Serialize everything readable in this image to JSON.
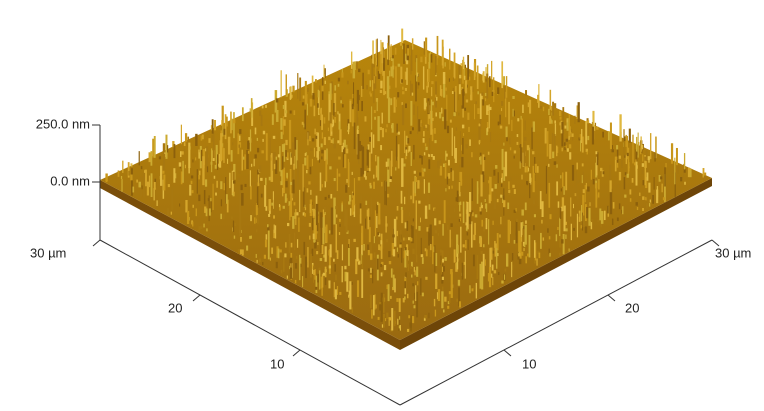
{
  "z_axis": {
    "ticks": [
      "250.0 nm",
      "0.0 nm"
    ]
  },
  "left_axis": {
    "ticks": [
      "30 µm",
      "20",
      "10"
    ]
  },
  "right_axis": {
    "ticks": [
      "10",
      "20",
      "30 µm"
    ]
  }
}
